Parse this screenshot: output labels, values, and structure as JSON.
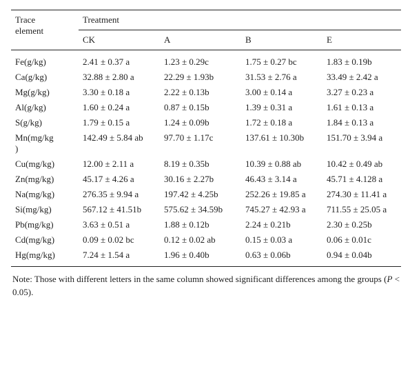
{
  "table": {
    "corner_header": "Trace element",
    "group_header": "Treatment",
    "columns": [
      "CK",
      "A",
      "B",
      "E"
    ],
    "rows": [
      [
        "Fe(g/kg)",
        "2.41 ± 0.37 a",
        "1.23 ± 0.29c",
        "1.75 ± 0.27 bc",
        "1.83 ± 0.19b"
      ],
      [
        "Ca(g/kg)",
        "32.88 ± 2.80 a",
        "22.29 ± 1.93b",
        "31.53 ± 2.76 a",
        "33.49 ± 2.42 a"
      ],
      [
        "Mg(g/kg)",
        "3.30 ± 0.18 a",
        "2.22 ± 0.13b",
        "3.00 ± 0.14 a",
        "3.27 ± 0.23 a"
      ],
      [
        "Al(g/kg)",
        "1.60 ± 0.24 a",
        "0.87 ± 0.15b",
        "1.39 ± 0.31 a",
        "1.61 ± 0.13 a"
      ],
      [
        "S(g/kg)",
        "1.79 ± 0.15 a",
        "1.24 ± 0.09b",
        "1.72 ± 0.18 a",
        "1.84 ± 0.13 a"
      ],
      [
        "Mn(mg/kg)",
        "142.49 ± 5.84 ab",
        "97.70 ± 1.17c",
        "137.61 ± 10.30b",
        "151.70 ± 3.94 a"
      ],
      [
        "Cu(mg/kg)",
        "12.00 ± 2.11 a",
        "8.19 ± 0.35b",
        "10.39 ± 0.88 ab",
        "10.42 ± 0.49 ab"
      ],
      [
        "Zn(mg/kg)",
        "45.17 ± 4.26 a",
        "30.16 ± 2.27b",
        "46.43 ± 3.14 a",
        "45.71 ± 4.128 a"
      ],
      [
        "Na(mg/kg)",
        "276.35 ± 9.94 a",
        "197.42 ± 4.25b",
        "252.26 ± 19.85 a",
        "274.30 ± 11.41 a"
      ],
      [
        "Si(mg/kg)",
        "567.12 ± 41.51b",
        "575.62 ± 34.59b",
        "745.27 ± 42.93 a",
        "711.55 ± 25.05 a"
      ],
      [
        "Pb(mg/kg)",
        "3.63 ± 0.51 a",
        "1.88 ± 0.12b",
        "2.24 ± 0.21b",
        "2.30 ± 0.25b"
      ],
      [
        "Cd(mg/kg)",
        "0.09 ± 0.02 bc",
        "0.12 ± 0.02 ab",
        "0.15 ± 0.03 a",
        "0.06 ± 0.01c"
      ],
      [
        "Hg(mg/kg)",
        "7.24 ± 1.54 a",
        "1.96 ± 0.40b",
        "0.63 ± 0.06b",
        "0.94 ± 0.04b"
      ]
    ]
  },
  "note": {
    "before": "Note: Those with different letters in the same column showed significant differences among the groups (",
    "italic": "P",
    "after": " < 0.05)."
  }
}
